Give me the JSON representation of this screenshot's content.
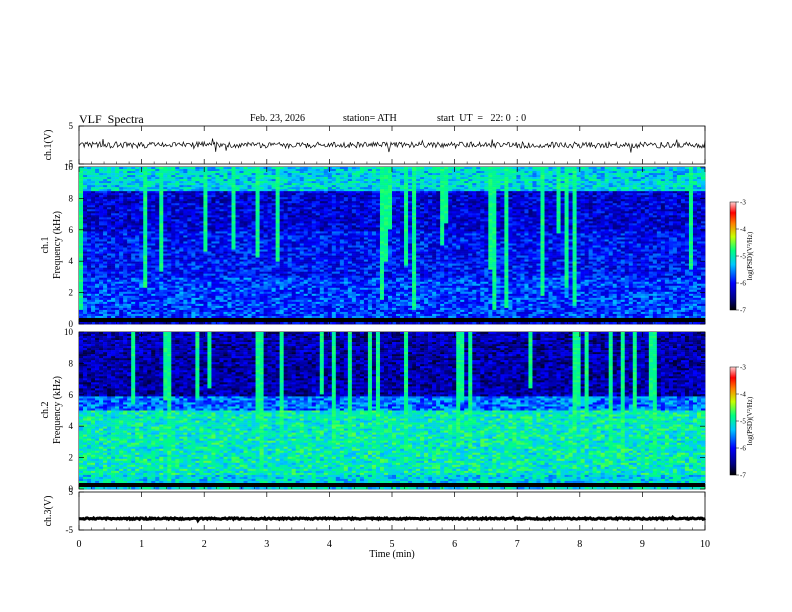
{
  "header": {
    "title": "VLF  Spectra",
    "date": "Feb. 23, 2026",
    "station": "station= ATH",
    "start": "start  UT  =   22: 0  : 0"
  },
  "chart_data": [
    {
      "type": "line",
      "name": "ch1-waveform",
      "ylabel": "ch.1(V)",
      "ylim": [
        -5,
        5
      ],
      "yticks": [
        "5",
        "-5"
      ],
      "xlim": [
        0,
        10
      ],
      "description_values": {
        "baseline": 0,
        "amplitude": 0.8
      }
    },
    {
      "type": "heatmap",
      "name": "ch1-spectrogram",
      "ylabel": "ch.1\nFrequency  (kHz)",
      "xlim": [
        0,
        10
      ],
      "ylim": [
        0,
        10
      ],
      "yticks": [
        "0",
        "2",
        "4",
        "6",
        "8",
        "10"
      ],
      "colorbar": {
        "label": "log(PSD)(V²/Hz)",
        "ticks": [
          "-3",
          "-4",
          "-5",
          "-6",
          "-7"
        ],
        "range": [
          -7,
          -3
        ]
      }
    },
    {
      "type": "heatmap",
      "name": "ch2-spectrogram",
      "ylabel": "ch.2\nFrequency  (kHz)",
      "xlim": [
        0,
        10
      ],
      "ylim": [
        0,
        10
      ],
      "yticks": [
        "0",
        "2",
        "4",
        "6",
        "8",
        "10"
      ],
      "colorbar": {
        "label": "log(PSD)(V²/Hz)",
        "ticks": [
          "-3",
          "-4",
          "-5",
          "-6",
          "-7"
        ],
        "range": [
          -7,
          -3
        ]
      }
    },
    {
      "type": "line",
      "name": "ch3-waveform",
      "ylabel": "ch.3(V)",
      "ylim": [
        -5,
        5
      ],
      "yticks": [
        "5",
        "-5"
      ],
      "xlim": [
        0,
        10
      ],
      "xlabel": "Time  (min)",
      "xticks": [
        "0",
        "1",
        "2",
        "3",
        "4",
        "5",
        "6",
        "7",
        "8",
        "9",
        "10"
      ],
      "description_values": {
        "baseline": -2,
        "amplitude": 0.2
      }
    }
  ]
}
